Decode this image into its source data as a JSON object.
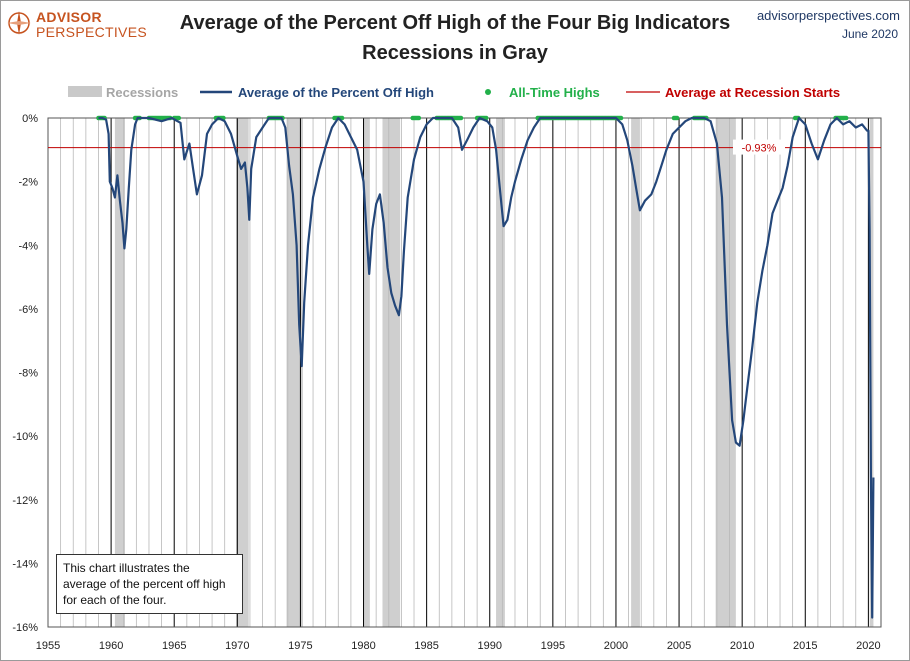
{
  "brand": {
    "logo_top": "ADVISOR",
    "logo_bottom": "PERSPECTIVES",
    "site": "advisorperspectives.com",
    "date": "June 2020",
    "logo_color": "#c6531f",
    "site_color": "#1f3864"
  },
  "note": "This chart illustrates the average of the percent off high for each of the four.",
  "chart_data": {
    "type": "line",
    "title": "Average of the Percent Off High of the Four Big Indicators",
    "subtitle": "Recessions in Gray",
    "xlim": [
      1955,
      2021
    ],
    "ylim": [
      -16,
      0
    ],
    "x_ticks": [
      1955,
      1960,
      1965,
      1970,
      1975,
      1980,
      1985,
      1990,
      1995,
      2000,
      2005,
      2010,
      2015,
      2020
    ],
    "y_ticks": [
      0,
      -2,
      -4,
      -6,
      -8,
      -10,
      -12,
      -14,
      -16
    ],
    "y_tick_labels": [
      "0%",
      "-2%",
      "-4%",
      "-6%",
      "-8%",
      "-10%",
      "-12%",
      "-14%",
      "-16%"
    ],
    "grid": "vertical lines yearly, black at each 5 years",
    "legend": {
      "placement": "top",
      "items": [
        {
          "label": "Recessions",
          "color": "#c9c9c9"
        },
        {
          "label": "Average of the Percent Off High",
          "color": "#24477a"
        },
        {
          "label": "All-Time Highs",
          "color": "#22b04a"
        },
        {
          "label": "Average at Recession Starts",
          "color": "#c00000"
        }
      ]
    },
    "recessions": [
      [
        1960.3,
        1961.1
      ],
      [
        1969.9,
        1970.9
      ],
      [
        1973.9,
        1975.2
      ],
      [
        1980.0,
        1980.5
      ],
      [
        1981.5,
        1982.9
      ],
      [
        1990.5,
        1991.2
      ],
      [
        2001.2,
        2001.9
      ],
      [
        2007.9,
        2009.5
      ],
      [
        2020.1,
        2020.4
      ]
    ],
    "recession_start_average": {
      "value": -0.93,
      "label": "-0.93%"
    },
    "series": [
      {
        "name": "Average of the Percent Off High",
        "color": "#24477a",
        "points": [
          [
            1959.0,
            0
          ],
          [
            1959.3,
            0
          ],
          [
            1959.6,
            -0.05
          ],
          [
            1959.8,
            -0.5
          ],
          [
            1959.9,
            -2.0
          ],
          [
            1960.1,
            -2.2
          ],
          [
            1960.3,
            -2.5
          ],
          [
            1960.5,
            -1.8
          ],
          [
            1960.7,
            -2.6
          ],
          [
            1960.9,
            -3.3
          ],
          [
            1961.05,
            -4.1
          ],
          [
            1961.2,
            -3.5
          ],
          [
            1961.4,
            -2.2
          ],
          [
            1961.6,
            -1.0
          ],
          [
            1961.9,
            -0.2
          ],
          [
            1962.1,
            0
          ],
          [
            1963.0,
            0
          ],
          [
            1964.0,
            -0.1
          ],
          [
            1964.8,
            0
          ],
          [
            1965.5,
            -0.15
          ],
          [
            1965.8,
            -1.3
          ],
          [
            1966.2,
            -0.8
          ],
          [
            1966.5,
            -1.6
          ],
          [
            1966.8,
            -2.4
          ],
          [
            1967.2,
            -1.8
          ],
          [
            1967.6,
            -0.5
          ],
          [
            1968.0,
            -0.2
          ],
          [
            1968.5,
            0
          ],
          [
            1969.0,
            -0.1
          ],
          [
            1969.5,
            -0.5
          ],
          [
            1970.0,
            -1.2
          ],
          [
            1970.3,
            -1.6
          ],
          [
            1970.6,
            -1.4
          ],
          [
            1970.8,
            -2.2
          ],
          [
            1970.95,
            -3.2
          ],
          [
            1971.1,
            -1.6
          ],
          [
            1971.5,
            -0.6
          ],
          [
            1972.0,
            -0.3
          ],
          [
            1972.5,
            0
          ],
          [
            1973.5,
            0
          ],
          [
            1973.8,
            -0.3
          ],
          [
            1974.1,
            -1.5
          ],
          [
            1974.4,
            -2.4
          ],
          [
            1974.7,
            -4.0
          ],
          [
            1974.9,
            -6.5
          ],
          [
            1975.1,
            -7.8
          ],
          [
            1975.3,
            -5.8
          ],
          [
            1975.6,
            -4.0
          ],
          [
            1976.0,
            -2.5
          ],
          [
            1976.5,
            -1.6
          ],
          [
            1977.0,
            -0.9
          ],
          [
            1977.5,
            -0.3
          ],
          [
            1978.0,
            0
          ],
          [
            1978.5,
            -0.2
          ],
          [
            1979.0,
            -0.6
          ],
          [
            1979.5,
            -1.0
          ],
          [
            1980.0,
            -2.0
          ],
          [
            1980.3,
            -4.0
          ],
          [
            1980.45,
            -4.9
          ],
          [
            1980.7,
            -3.5
          ],
          [
            1981.0,
            -2.7
          ],
          [
            1981.3,
            -2.4
          ],
          [
            1981.6,
            -3.3
          ],
          [
            1981.9,
            -4.7
          ],
          [
            1982.2,
            -5.5
          ],
          [
            1982.5,
            -5.9
          ],
          [
            1982.8,
            -6.2
          ],
          [
            1983.0,
            -5.6
          ],
          [
            1983.2,
            -4.2
          ],
          [
            1983.5,
            -2.5
          ],
          [
            1984.0,
            -1.3
          ],
          [
            1984.5,
            -0.6
          ],
          [
            1985.0,
            -0.2
          ],
          [
            1985.5,
            0
          ],
          [
            1986.5,
            0
          ],
          [
            1987.0,
            0
          ],
          [
            1987.5,
            -0.3
          ],
          [
            1987.8,
            -1.0
          ],
          [
            1988.2,
            -0.7
          ],
          [
            1988.7,
            -0.3
          ],
          [
            1989.2,
            0
          ],
          [
            1989.8,
            -0.1
          ],
          [
            1990.2,
            -0.3
          ],
          [
            1990.5,
            -1.0
          ],
          [
            1990.8,
            -2.2
          ],
          [
            1991.1,
            -3.4
          ],
          [
            1991.4,
            -3.2
          ],
          [
            1991.7,
            -2.5
          ],
          [
            1992.0,
            -2.0
          ],
          [
            1992.5,
            -1.3
          ],
          [
            1993.0,
            -0.7
          ],
          [
            1993.5,
            -0.3
          ],
          [
            1994.0,
            0
          ],
          [
            1996.0,
            0
          ],
          [
            1998.0,
            0
          ],
          [
            2000.0,
            0
          ],
          [
            2000.5,
            -0.2
          ],
          [
            2000.9,
            -0.7
          ],
          [
            2001.3,
            -1.5
          ],
          [
            2001.6,
            -2.2
          ],
          [
            2001.9,
            -2.9
          ],
          [
            2002.3,
            -2.6
          ],
          [
            2002.8,
            -2.4
          ],
          [
            2003.2,
            -2.0
          ],
          [
            2003.6,
            -1.5
          ],
          [
            2004.0,
            -1.0
          ],
          [
            2004.5,
            -0.5
          ],
          [
            2005.0,
            -0.3
          ],
          [
            2005.5,
            -0.1
          ],
          [
            2006.0,
            0
          ],
          [
            2007.0,
            0
          ],
          [
            2007.5,
            -0.1
          ],
          [
            2008.0,
            -0.8
          ],
          [
            2008.4,
            -2.5
          ],
          [
            2008.8,
            -6.5
          ],
          [
            2009.2,
            -9.5
          ],
          [
            2009.5,
            -10.2
          ],
          [
            2009.8,
            -10.3
          ],
          [
            2010.1,
            -9.5
          ],
          [
            2010.4,
            -8.5
          ],
          [
            2010.8,
            -7.2
          ],
          [
            2011.2,
            -5.8
          ],
          [
            2011.6,
            -4.8
          ],
          [
            2012.0,
            -4.0
          ],
          [
            2012.4,
            -3.0
          ],
          [
            2012.8,
            -2.6
          ],
          [
            2013.2,
            -2.2
          ],
          [
            2013.6,
            -1.5
          ],
          [
            2014.0,
            -0.6
          ],
          [
            2014.5,
            0
          ],
          [
            2015.0,
            -0.2
          ],
          [
            2015.5,
            -0.8
          ],
          [
            2016.0,
            -1.3
          ],
          [
            2016.5,
            -0.7
          ],
          [
            2017.0,
            -0.2
          ],
          [
            2017.5,
            0
          ],
          [
            2018.0,
            -0.2
          ],
          [
            2018.5,
            -0.1
          ],
          [
            2019.0,
            -0.3
          ],
          [
            2019.5,
            -0.2
          ],
          [
            2019.9,
            -0.4
          ],
          [
            2020.0,
            -0.4
          ],
          [
            2020.1,
            -3.5
          ],
          [
            2020.2,
            -11.2
          ],
          [
            2020.3,
            -15.7
          ],
          [
            2020.4,
            -11.3
          ]
        ]
      }
    ],
    "all_time_highs_ranges": [
      [
        1959.0,
        1959.5
      ],
      [
        1961.9,
        1962.3
      ],
      [
        1963.0,
        1964.7
      ],
      [
        1965.0,
        1965.4
      ],
      [
        1968.3,
        1969.0
      ],
      [
        1972.5,
        1973.6
      ],
      [
        1977.7,
        1978.3
      ],
      [
        1983.9,
        1984.4
      ],
      [
        1985.8,
        1987.8
      ],
      [
        1989.0,
        1989.8
      ],
      [
        1993.8,
        2000.5
      ],
      [
        2004.6,
        2004.9
      ],
      [
        2006.2,
        2007.2
      ],
      [
        2014.2,
        2014.5
      ],
      [
        2017.4,
        2018.3
      ]
    ]
  }
}
